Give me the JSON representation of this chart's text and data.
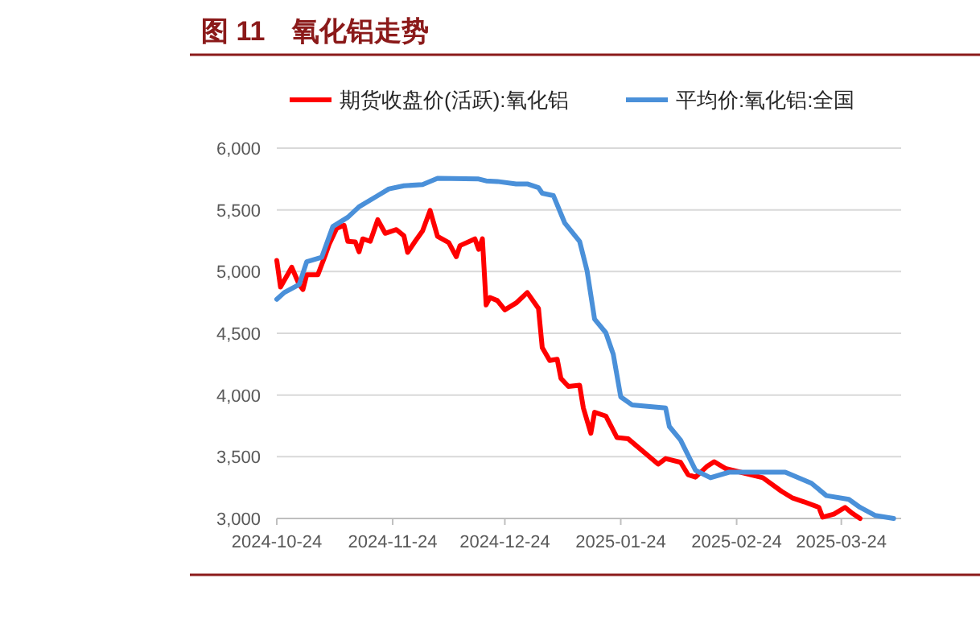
{
  "chart_data": {
    "type": "line",
    "title": "图 11　氧化铝走势",
    "legend": "top",
    "grid": "y",
    "marker": "none",
    "line_style": "solid",
    "xlim": [
      "2024-10-24",
      "2025-04-09"
    ],
    "xticks": [
      "2024-10-24",
      "2024-11-24",
      "2024-12-24",
      "2025-01-24",
      "2025-02-24",
      "2025-03-24"
    ],
    "ylim": [
      3000,
      6000
    ],
    "yticks": [
      {
        "value": 3000,
        "label": "3,000"
      },
      {
        "value": 3500,
        "label": "3,500"
      },
      {
        "value": 4000,
        "label": "4,000"
      },
      {
        "value": 4500,
        "label": "4,500"
      },
      {
        "value": 5000,
        "label": "5,000"
      },
      {
        "value": 5500,
        "label": "5,500"
      },
      {
        "value": 6000,
        "label": "6,000"
      }
    ],
    "series": [
      {
        "name": "期货收盘价(活跃):氧化铝",
        "color": "#ff0000",
        "x": [
          "2024-10-24",
          "2024-10-25",
          "2024-10-28",
          "2024-10-30",
          "2024-10-31",
          "2024-11-01",
          "2024-11-04",
          "2024-11-06",
          "2024-11-07",
          "2024-11-09",
          "2024-11-11",
          "2024-11-12",
          "2024-11-14",
          "2024-11-15",
          "2024-11-16",
          "2024-11-18",
          "2024-11-20",
          "2024-11-22",
          "2024-11-25",
          "2024-11-27",
          "2024-11-28",
          "2024-11-30",
          "2024-12-02",
          "2024-12-04",
          "2024-12-06",
          "2024-12-09",
          "2024-12-11",
          "2024-12-12",
          "2024-12-16",
          "2024-12-17",
          "2024-12-18",
          "2024-12-19",
          "2024-12-20",
          "2024-12-22",
          "2024-12-24",
          "2024-12-27",
          "2024-12-30",
          "2025-01-02",
          "2025-01-03",
          "2025-01-05",
          "2025-01-07",
          "2025-01-08",
          "2025-01-10",
          "2025-01-13",
          "2025-01-14",
          "2025-01-16",
          "2025-01-17",
          "2025-01-20",
          "2025-01-23",
          "2025-01-26",
          "2025-02-03",
          "2025-02-05",
          "2025-02-09",
          "2025-02-11",
          "2025-02-13",
          "2025-02-16",
          "2025-02-18",
          "2025-02-21",
          "2025-02-25",
          "2025-03-03",
          "2025-03-08",
          "2025-03-11",
          "2025-03-14",
          "2025-03-18",
          "2025-03-19",
          "2025-03-22",
          "2025-03-25",
          "2025-03-27",
          "2025-03-29"
        ],
        "values": [
          5090,
          4875,
          5035,
          4895,
          4855,
          4975,
          4975,
          5135,
          5220,
          5350,
          5375,
          5245,
          5240,
          5160,
          5265,
          5245,
          5420,
          5310,
          5340,
          5290,
          5155,
          5245,
          5330,
          5495,
          5285,
          5235,
          5120,
          5210,
          5265,
          5180,
          5265,
          4730,
          4790,
          4765,
          4690,
          4745,
          4830,
          4700,
          4385,
          4280,
          4290,
          4135,
          4070,
          4080,
          3895,
          3690,
          3860,
          3830,
          3655,
          3645,
          3440,
          3485,
          3455,
          3355,
          3335,
          3420,
          3460,
          3405,
          3375,
          3330,
          3220,
          3165,
          3135,
          3090,
          3010,
          3035,
          3090,
          3040,
          3000
        ]
      },
      {
        "name": "平均价:氧化铝:全国",
        "color": "#4a90d9",
        "x": [
          "2024-10-24",
          "2024-10-26",
          "2024-10-30",
          "2024-11-01",
          "2024-11-05",
          "2024-11-08",
          "2024-11-12",
          "2024-11-15",
          "2024-11-20",
          "2024-11-23",
          "2024-11-27",
          "2024-12-02",
          "2024-12-06",
          "2024-12-17",
          "2024-12-19",
          "2024-12-22",
          "2024-12-27",
          "2024-12-30",
          "2025-01-02",
          "2025-01-03",
          "2025-01-06",
          "2025-01-09",
          "2025-01-13",
          "2025-01-15",
          "2025-01-17",
          "2025-01-20",
          "2025-01-22",
          "2025-01-24",
          "2025-01-27",
          "2025-02-05",
          "2025-02-06",
          "2025-02-09",
          "2025-02-13",
          "2025-02-17",
          "2025-02-22",
          "2025-03-09",
          "2025-03-16",
          "2025-03-20",
          "2025-03-26",
          "2025-03-29",
          "2025-04-02",
          "2025-04-07"
        ],
        "values": [
          4775,
          4830,
          4895,
          5080,
          5115,
          5365,
          5440,
          5525,
          5615,
          5670,
          5695,
          5705,
          5755,
          5750,
          5735,
          5730,
          5710,
          5710,
          5680,
          5635,
          5615,
          5395,
          5245,
          5005,
          4615,
          4505,
          4330,
          3985,
          3920,
          3895,
          3745,
          3635,
          3390,
          3330,
          3375,
          3375,
          3285,
          3185,
          3155,
          3090,
          3025,
          3000
        ]
      }
    ]
  }
}
